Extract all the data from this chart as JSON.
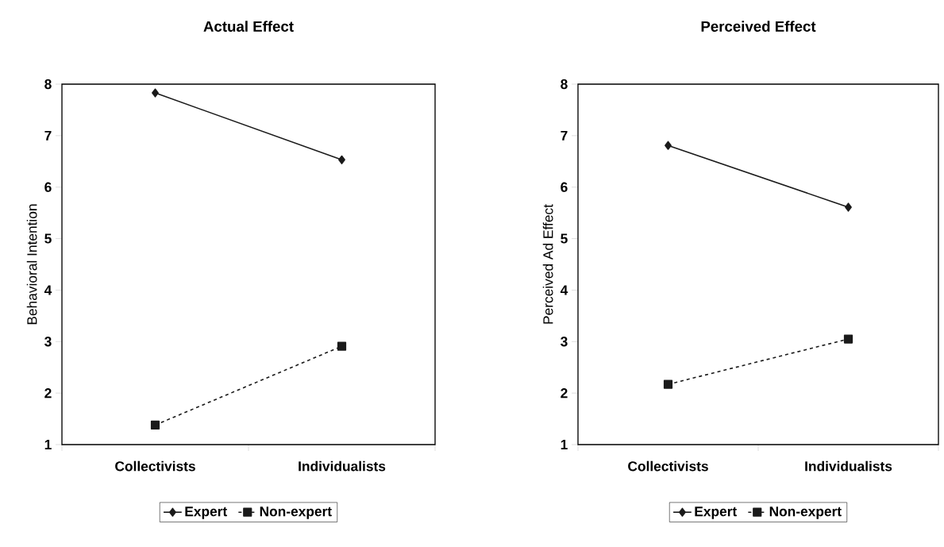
{
  "chart_data": [
    {
      "type": "line",
      "title": "Actual Effect",
      "ylabel": "Behavioral Intention",
      "categories": [
        "Collectivists",
        "Individualists"
      ],
      "series": [
        {
          "name": "Expert",
          "color": "#1a1a1a",
          "values": [
            7.83,
            6.53
          ],
          "marker": "diamond",
          "line_style": "solid"
        },
        {
          "name": "Non-expert",
          "color": "#1a1a1a",
          "values": [
            1.38,
            2.91
          ],
          "marker": "square",
          "line_style": "dashed"
        }
      ],
      "ylim": [
        1,
        8
      ],
      "yticks": [
        1,
        2,
        3,
        4,
        5,
        6,
        7,
        8
      ],
      "grid": false,
      "legend": "bottom"
    },
    {
      "type": "line",
      "title": "Perceived Effect",
      "ylabel": "Perceived Ad Effect",
      "categories": [
        "Collectivists",
        "Individualists"
      ],
      "series": [
        {
          "name": "Expert",
          "color": "#1a1a1a",
          "values": [
            6.81,
            5.61
          ],
          "marker": "diamond",
          "line_style": "solid"
        },
        {
          "name": "Non-expert",
          "color": "#1a1a1a",
          "values": [
            2.17,
            3.05
          ],
          "marker": "square",
          "line_style": "dashed"
        }
      ],
      "ylim": [
        1,
        8
      ],
      "yticks": [
        1,
        2,
        3,
        4,
        5,
        6,
        7,
        8
      ],
      "grid": false,
      "legend": "bottom"
    }
  ]
}
